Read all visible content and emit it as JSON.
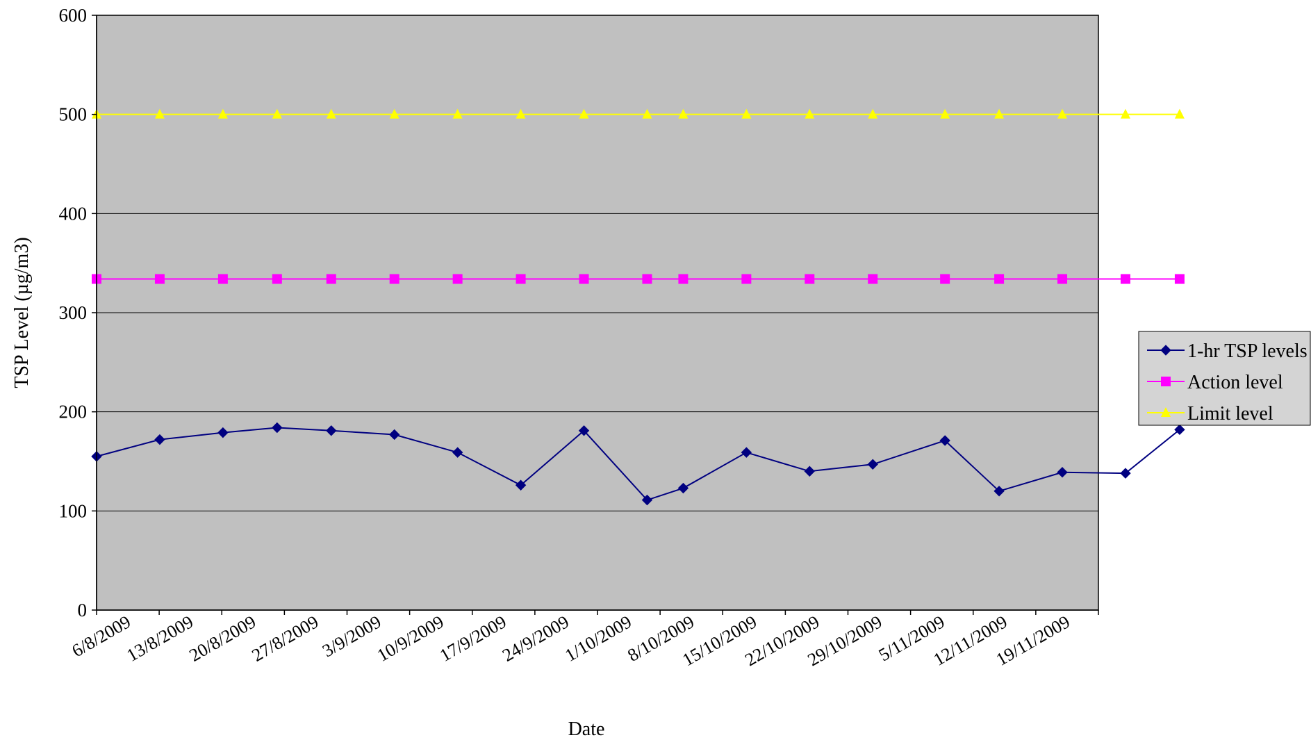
{
  "chart_data": {
    "type": "line",
    "xlabel": "Date",
    "ylabel": "TSP Level (µg/m3)",
    "ylim": [
      0,
      600
    ],
    "y_ticks": [
      0,
      100,
      200,
      300,
      400,
      500,
      600
    ],
    "grid": "horizontal",
    "legend_position": "right",
    "plot_background": "#c0c0c0",
    "x_tick_labels": [
      "6/8/2009",
      "13/8/2009",
      "20/8/2009",
      "27/8/2009",
      "3/9/2009",
      "10/9/2009",
      "17/9/2009",
      "24/9/2009",
      "1/10/2009",
      "8/10/2009",
      "15/10/2009",
      "22/10/2009",
      "29/10/2009",
      "5/11/2009",
      "12/11/2009",
      "19/11/2009"
    ],
    "x_range": [
      "2009-08-06",
      "2009-11-25"
    ],
    "series": [
      {
        "name": "1-hr TSP levels",
        "color": "#000080",
        "marker": "diamond",
        "x": [
          "2009-08-06",
          "2009-08-13",
          "2009-08-20",
          "2009-08-26",
          "2009-09-01",
          "2009-09-08",
          "2009-09-15",
          "2009-09-22",
          "2009-09-29",
          "2009-10-06",
          "2009-10-10",
          "2009-10-17",
          "2009-10-24",
          "2009-10-31",
          "2009-11-08",
          "2009-11-14",
          "2009-11-21",
          "2009-11-28",
          "2009-12-04"
        ],
        "y": [
          155,
          172,
          179,
          184,
          181,
          177,
          159,
          126,
          181,
          111,
          123,
          159,
          140,
          147,
          171,
          120,
          139,
          138,
          182
        ]
      },
      {
        "name": "Action level",
        "color": "#ff00ff",
        "marker": "square",
        "x": [
          "2009-08-06",
          "2009-08-13",
          "2009-08-20",
          "2009-08-26",
          "2009-09-01",
          "2009-09-08",
          "2009-09-15",
          "2009-09-22",
          "2009-09-29",
          "2009-10-06",
          "2009-10-10",
          "2009-10-17",
          "2009-10-24",
          "2009-10-31",
          "2009-11-08",
          "2009-11-14",
          "2009-11-21",
          "2009-11-28",
          "2009-12-04"
        ],
        "y": [
          334,
          334,
          334,
          334,
          334,
          334,
          334,
          334,
          334,
          334,
          334,
          334,
          334,
          334,
          334,
          334,
          334,
          334,
          334
        ]
      },
      {
        "name": "Limit level",
        "color": "#ffff00",
        "marker": "triangle",
        "x": [
          "2009-08-06",
          "2009-08-13",
          "2009-08-20",
          "2009-08-26",
          "2009-09-01",
          "2009-09-08",
          "2009-09-15",
          "2009-09-22",
          "2009-09-29",
          "2009-10-06",
          "2009-10-10",
          "2009-10-17",
          "2009-10-24",
          "2009-10-31",
          "2009-11-08",
          "2009-11-14",
          "2009-11-21",
          "2009-11-28",
          "2009-12-04"
        ],
        "y": [
          500,
          500,
          500,
          500,
          500,
          500,
          500,
          500,
          500,
          500,
          500,
          500,
          500,
          500,
          500,
          500,
          500,
          500,
          500
        ]
      }
    ]
  }
}
